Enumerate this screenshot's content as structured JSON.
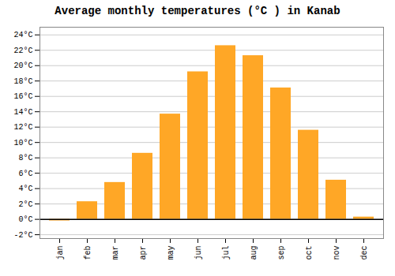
{
  "chart_data": {
    "type": "bar",
    "title": "Average monthly temperatures (°C ) in Kanab",
    "categories": [
      "jan",
      "feb",
      "mar",
      "apr",
      "may",
      "jun",
      "jul",
      "aug",
      "sep",
      "oct",
      "nov",
      "dec"
    ],
    "values": [
      -0.2,
      2.3,
      4.8,
      8.6,
      13.7,
      19.2,
      22.6,
      21.3,
      17.1,
      11.6,
      5.1,
      0.3
    ],
    "color": "#FFA726",
    "ylim": [
      -2.5,
      25
    ],
    "yticks": [
      {
        "value": -2,
        "label": "-2°C"
      },
      {
        "value": 0,
        "label": "0°C"
      },
      {
        "value": 2,
        "label": "2°C"
      },
      {
        "value": 4,
        "label": "4°C"
      },
      {
        "value": 6,
        "label": "6°C"
      },
      {
        "value": 8,
        "label": "8°C"
      },
      {
        "value": 10,
        "label": "10°C"
      },
      {
        "value": 12,
        "label": "12°C"
      },
      {
        "value": 14,
        "label": "14°C"
      },
      {
        "value": 16,
        "label": "16°C"
      },
      {
        "value": 18,
        "label": "18°C"
      },
      {
        "value": 20,
        "label": "20°C"
      },
      {
        "value": 22,
        "label": "22°C"
      },
      {
        "value": 24,
        "label": "24°C"
      }
    ],
    "grid": true
  }
}
